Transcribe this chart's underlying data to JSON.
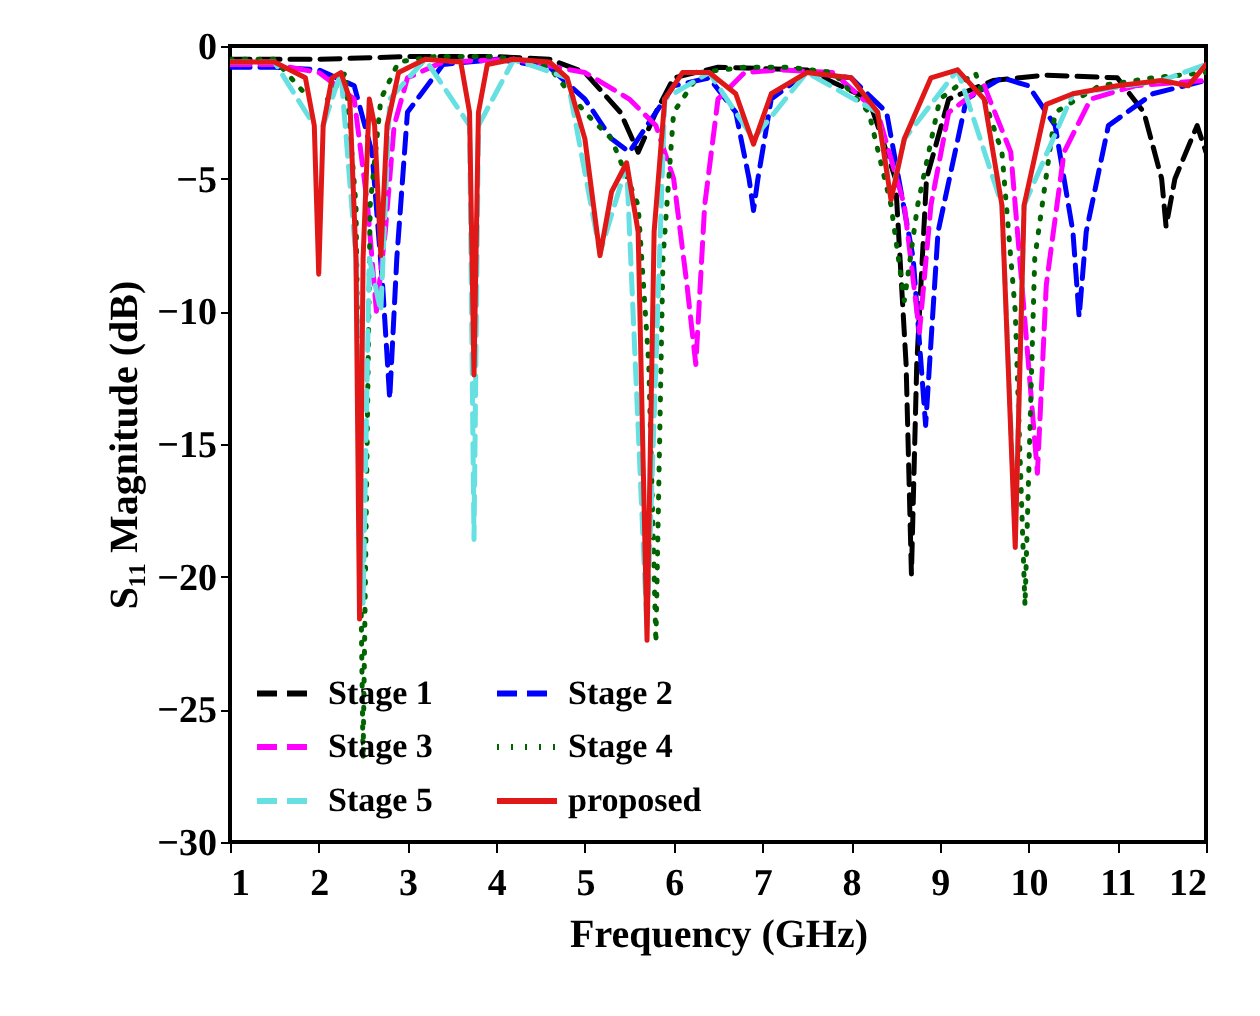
{
  "chart_data": {
    "type": "line",
    "xlabel": "Frequency (GHz)",
    "ylabel": "S₁₁ Magnitude (dB)",
    "xlim": [
      1,
      12
    ],
    "xticks": [
      1,
      2,
      3,
      4,
      5,
      6,
      7,
      8,
      9,
      10,
      11,
      12
    ],
    "ylim": [
      -30,
      0
    ],
    "yticks": [
      -30,
      -25,
      -20,
      -15,
      -10,
      -5,
      0
    ],
    "grid": false,
    "legend": "bottom left",
    "series": [
      {
        "name": "Stage 1",
        "color": "#000000",
        "line_style": "dashed",
        "x": [
          1,
          2,
          3,
          4,
          4.6,
          5.0,
          5.4,
          5.6,
          5.8,
          6.0,
          6.5,
          7.5,
          8.2,
          8.5,
          8.62,
          8.68,
          8.74,
          8.85,
          9.1,
          9.6,
          10.2,
          11.0,
          11.3,
          11.5,
          11.55,
          11.65,
          11.9,
          12
        ],
        "values": [
          -0.5,
          -0.5,
          -0.4,
          -0.4,
          -0.5,
          -1.0,
          -2.5,
          -4,
          -2.5,
          -1.2,
          -0.8,
          -0.9,
          -2,
          -5,
          -12,
          -19.9,
          -12,
          -5,
          -2,
          -1.3,
          -1.1,
          -1.2,
          -2.5,
          -5,
          -6.8,
          -5,
          -3,
          -4
        ]
      },
      {
        "name": "Stage 2",
        "color": "#0000ff",
        "line_style": "dashed",
        "x": [
          1,
          1.5,
          2.0,
          2.4,
          2.6,
          2.72,
          2.8,
          2.88,
          3.0,
          3.4,
          4.0,
          4.6,
          5.0,
          5.3,
          5.5,
          5.7,
          6.0,
          6.4,
          6.7,
          6.85,
          6.9,
          6.95,
          7.1,
          7.5,
          8.0,
          8.4,
          8.7,
          8.84,
          8.98,
          9.3,
          9.7,
          10.0,
          10.3,
          10.5,
          10.57,
          10.65,
          10.9,
          11.4,
          12
        ],
        "values": [
          -0.8,
          -0.8,
          -0.9,
          -1.5,
          -4,
          -9,
          -13.3,
          -8,
          -2.5,
          -0.7,
          -0.5,
          -0.8,
          -2,
          -3.5,
          -4,
          -3,
          -1.5,
          -1.2,
          -2.5,
          -5,
          -6.2,
          -5,
          -2,
          -1,
          -1.2,
          -2.5,
          -8,
          -14.3,
          -7,
          -2,
          -1.2,
          -1.5,
          -3,
          -7,
          -10.2,
          -7,
          -3,
          -1.8,
          -1.3
        ]
      },
      {
        "name": "Stage 3",
        "color": "#ff00ff",
        "line_style": "dashed",
        "x": [
          1,
          1.5,
          2.0,
          2.4,
          2.55,
          2.65,
          2.75,
          2.85,
          3.0,
          3.4,
          4.2,
          5.0,
          5.5,
          5.8,
          6.0,
          6.15,
          6.25,
          6.35,
          6.5,
          6.8,
          7.2,
          7.8,
          8.3,
          8.6,
          8.77,
          8.9,
          9.1,
          9.5,
          9.8,
          9.95,
          10.1,
          10.2,
          10.4,
          10.7,
          11.2,
          12
        ],
        "values": [
          -0.7,
          -0.7,
          -1,
          -2,
          -6,
          -10,
          -7,
          -3,
          -1.2,
          -0.6,
          -0.5,
          -1,
          -2,
          -3,
          -5,
          -9,
          -12,
          -6,
          -2,
          -1,
          -0.9,
          -1,
          -2.5,
          -6,
          -10.8,
          -6,
          -2.5,
          -1.5,
          -4,
          -10,
          -16.1,
          -9,
          -4,
          -2,
          -1.5,
          -1.3
        ]
      },
      {
        "name": "Stage 4",
        "color": "#006400",
        "line_style": "dotted",
        "x": [
          1,
          1.5,
          1.9,
          2.0,
          2.1,
          2.3,
          2.42,
          2.5,
          2.58,
          2.7,
          2.9,
          3.3,
          4.0,
          4.6,
          5.0,
          5.3,
          5.6,
          5.72,
          5.8,
          5.88,
          6.0,
          6.3,
          6.8,
          7.3,
          7.8,
          8.2,
          8.45,
          8.6,
          8.75,
          9.0,
          9.4,
          9.7,
          9.85,
          9.96,
          10.07,
          10.3,
          10.8,
          11.4,
          12
        ],
        "values": [
          -0.5,
          -0.5,
          -2,
          null,
          -2,
          -1,
          -6,
          -26.9,
          -6,
          -2,
          -0.6,
          -0.4,
          -0.4,
          -0.8,
          -2.5,
          -3.5,
          -6,
          -12,
          -22.5,
          -8,
          -2.5,
          -1,
          -0.8,
          -0.8,
          -1,
          -2.5,
          -6,
          -9.6,
          -6,
          -2,
          -1,
          -4,
          -10,
          -21.1,
          -8,
          -2.5,
          -1.5,
          -1.2,
          -1
        ]
      },
      {
        "name": "Stage 5",
        "color": "#66e0e0",
        "line_style": "dashed",
        "x": [
          1,
          1.5,
          1.95,
          2.0,
          2.05,
          2.25,
          2.42,
          2.5,
          2.57,
          2.7,
          2.8,
          3.2,
          3.7,
          3.75,
          3.8,
          4.2,
          4.8,
          5.17,
          5.47,
          5.7,
          5.9,
          6.4,
          6.9,
          7.5,
          8.3,
          8.45,
          8.6,
          9.2,
          9.7,
          9.85,
          9.95,
          10.5,
          11.5,
          12
        ],
        "values": [
          -0.6,
          -0.6,
          -3,
          null,
          -3,
          -1,
          -8,
          -21,
          -8,
          -10,
          -2,
          -0.5,
          -3,
          -18.6,
          -3,
          -0.5,
          -1.2,
          -7.8,
          -4.5,
          -22,
          -2,
          -1,
          -3.5,
          -1,
          -2.5,
          -5.7,
          -3.5,
          -0.9,
          -6,
          -18.5,
          -6,
          -1.8,
          -1.3,
          -0.7
        ]
      },
      {
        "name": "proposed",
        "color": "#e01818",
        "line_style": "solid",
        "x": [
          1,
          1.5,
          1.85,
          1.95,
          2.0,
          2.05,
          2.15,
          2.25,
          2.35,
          2.42,
          2.46,
          2.5,
          2.57,
          2.63,
          2.7,
          2.77,
          2.9,
          3.2,
          3.6,
          3.7,
          3.75,
          3.8,
          3.9,
          4.2,
          4.6,
          4.8,
          5.0,
          5.17,
          5.3,
          5.47,
          5.6,
          5.7,
          5.78,
          5.9,
          6.1,
          6.4,
          6.7,
          6.9,
          7.1,
          7.5,
          8.0,
          8.3,
          8.45,
          8.6,
          8.9,
          9.2,
          9.5,
          9.7,
          9.85,
          9.95,
          10.2,
          10.5,
          11.0,
          11.5,
          11.8,
          12
        ],
        "values": [
          -0.6,
          -0.6,
          -1.2,
          -3,
          -8.6,
          -3,
          -1.2,
          -1.0,
          -2,
          -8,
          -21.6,
          -8,
          -2,
          -3,
          -7.9,
          -3,
          -1,
          -0.5,
          -0.6,
          -2.5,
          -12.4,
          -2.5,
          -0.7,
          -0.5,
          -0.6,
          -1.2,
          -3.5,
          -7.9,
          -5.5,
          -4.4,
          -7,
          -22.4,
          -7,
          -2,
          -1,
          -1,
          -1.8,
          -3.7,
          -1.8,
          -1,
          -1.2,
          -2.5,
          -5.8,
          -3.5,
          -1.2,
          -0.9,
          -2,
          -6,
          -18.9,
          -6,
          -2.2,
          -1.8,
          -1.5,
          -1.3,
          -1.5,
          -0.7
        ]
      }
    ]
  }
}
